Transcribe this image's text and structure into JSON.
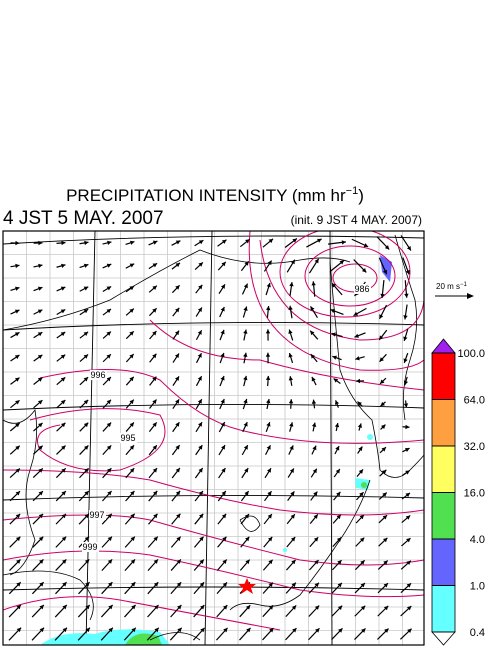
{
  "title": {
    "text": "PRECIPITATION INTENSITY (mm hr",
    "exponent": "−1",
    "close": ")"
  },
  "valid_time": "4 JST 5 MAY. 2007",
  "init_time": "(init. 9 JST 4 MAY. 2007)",
  "wind_reference": {
    "text": "20 m s",
    "exponent": "−1"
  },
  "colorbar": {
    "ticks": [
      {
        "value": 100,
        "label": "100.0"
      },
      {
        "value": 64,
        "label": "64.0"
      },
      {
        "value": 32,
        "label": "32.0"
      },
      {
        "value": 16,
        "label": "16.0"
      },
      {
        "value": 4,
        "label": "4.0"
      },
      {
        "value": 1,
        "label": "1.0"
      },
      {
        "value": 0.4,
        "label": "0.4"
      }
    ],
    "colors": [
      "#a020f0",
      "#ff0000",
      "#ffa040",
      "#ffff60",
      "#50e050",
      "#6464ff",
      "#64ffff",
      "#ffffff"
    ]
  },
  "contour_labels": [
    986,
    996,
    995,
    997,
    999
  ]
}
